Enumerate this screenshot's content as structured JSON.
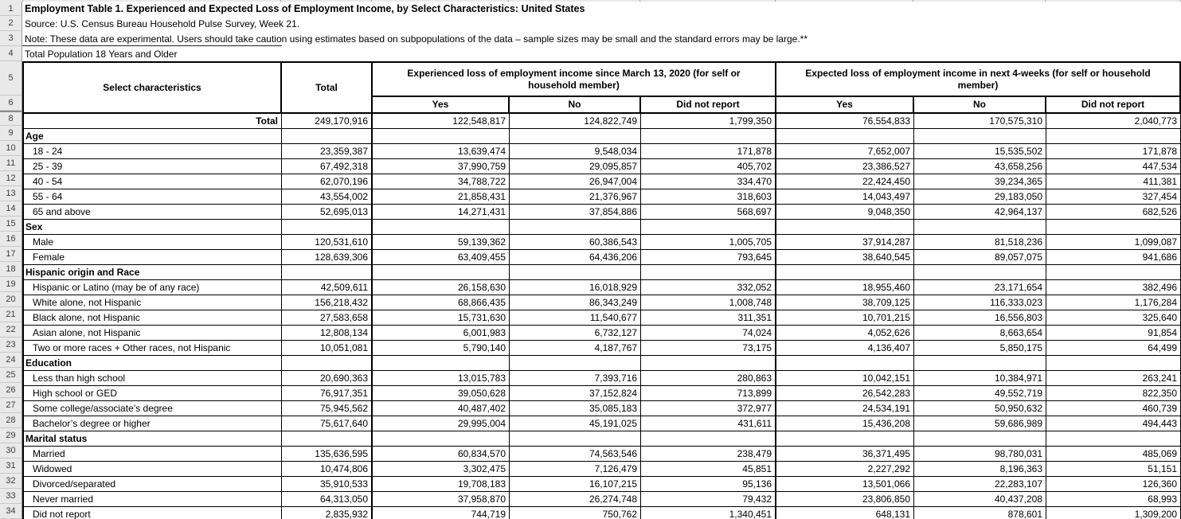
{
  "meta": {
    "title": "Employment Table 1. Experienced and Expected Loss of Employment Income, by Select Characteristics: United States",
    "source": "Source: U.S. Census Bureau Household Pulse Survey, Week 21.",
    "note": "Note: These data are experimental. Users should take caution using estimates based on subpopulations of the data – sample sizes may be small and the standard errors may be large.**",
    "population": "Total Population 18 Years and Older"
  },
  "gutter_meta_rows": [
    "1",
    "2",
    "3",
    "4",
    "5",
    "6"
  ],
  "table": {
    "headers": {
      "select": "Select characteristics",
      "total": "Total",
      "experienced": "Experienced loss of employment income since March 13, 2020 (for self or household member)",
      "expected": "Expected loss of employment income in next 4-weeks (for self or household member)",
      "subs": [
        "Yes",
        "No",
        "Did not report",
        "Yes",
        "No",
        "Did not report"
      ]
    },
    "rows": [
      {
        "n": "8",
        "type": "total",
        "label": "Total",
        "values": [
          "249,170,916",
          "122,548,817",
          "124,822,749",
          "1,799,350",
          "76,554,833",
          "170,575,310",
          "2,040,773"
        ]
      },
      {
        "n": "9",
        "type": "section",
        "label": "Age",
        "values": [
          "",
          "",
          "",
          "",
          "",
          "",
          ""
        ]
      },
      {
        "n": "10",
        "type": "data",
        "label": "18 - 24",
        "values": [
          "23,359,387",
          "13,639,474",
          "9,548,034",
          "171,878",
          "7,652,007",
          "15,535,502",
          "171,878"
        ]
      },
      {
        "n": "11",
        "type": "data",
        "label": "25 - 39",
        "values": [
          "67,492,318",
          "37,990,759",
          "29,095,857",
          "405,702",
          "23,386,527",
          "43,658,256",
          "447,534"
        ]
      },
      {
        "n": "12",
        "type": "data",
        "label": "40 - 54",
        "values": [
          "62,070,196",
          "34,788,722",
          "26,947,004",
          "334,470",
          "22,424,450",
          "39,234,365",
          "411,381"
        ]
      },
      {
        "n": "13",
        "type": "data",
        "label": "55 - 64",
        "values": [
          "43,554,002",
          "21,858,431",
          "21,376,967",
          "318,603",
          "14,043,497",
          "29,183,050",
          "327,454"
        ]
      },
      {
        "n": "14",
        "type": "data",
        "label": "65 and above",
        "values": [
          "52,695,013",
          "14,271,431",
          "37,854,886",
          "568,697",
          "9,048,350",
          "42,964,137",
          "682,526"
        ]
      },
      {
        "n": "15",
        "type": "section",
        "label": "Sex",
        "values": [
          "",
          "",
          "",
          "",
          "",
          "",
          ""
        ]
      },
      {
        "n": "16",
        "type": "data",
        "label": "Male",
        "values": [
          "120,531,610",
          "59,139,362",
          "60,386,543",
          "1,005,705",
          "37,914,287",
          "81,518,236",
          "1,099,087"
        ]
      },
      {
        "n": "17",
        "type": "data",
        "label": "Female",
        "values": [
          "128,639,306",
          "63,409,455",
          "64,436,206",
          "793,645",
          "38,640,545",
          "89,057,075",
          "941,686"
        ]
      },
      {
        "n": "18",
        "type": "section",
        "label": "Hispanic origin and Race",
        "values": [
          "",
          "",
          "",
          "",
          "",
          "",
          ""
        ]
      },
      {
        "n": "19",
        "type": "data",
        "label": "Hispanic or Latino (may be of any race)",
        "values": [
          "42,509,611",
          "26,158,630",
          "16,018,929",
          "332,052",
          "18,955,460",
          "23,171,654",
          "382,496"
        ]
      },
      {
        "n": "20",
        "type": "data",
        "label": "White alone, not Hispanic",
        "values": [
          "156,218,432",
          "68,866,435",
          "86,343,249",
          "1,008,748",
          "38,709,125",
          "116,333,023",
          "1,176,284"
        ]
      },
      {
        "n": "21",
        "type": "data",
        "label": "Black alone, not Hispanic",
        "values": [
          "27,583,658",
          "15,731,630",
          "11,540,677",
          "311,351",
          "10,701,215",
          "16,556,803",
          "325,640"
        ]
      },
      {
        "n": "22",
        "type": "data",
        "label": "Asian alone, not Hispanic",
        "values": [
          "12,808,134",
          "6,001,983",
          "6,732,127",
          "74,024",
          "4,052,626",
          "8,663,654",
          "91,854"
        ]
      },
      {
        "n": "23",
        "type": "data",
        "label": "Two or more races + Other races, not Hispanic",
        "values": [
          "10,051,081",
          "5,790,140",
          "4,187,767",
          "73,175",
          "4,136,407",
          "5,850,175",
          "64,499"
        ]
      },
      {
        "n": "24",
        "type": "section",
        "label": "Education",
        "values": [
          "",
          "",
          "",
          "",
          "",
          "",
          ""
        ]
      },
      {
        "n": "25",
        "type": "data",
        "label": "Less than high school",
        "values": [
          "20,690,363",
          "13,015,783",
          "7,393,716",
          "280,863",
          "10,042,151",
          "10,384,971",
          "263,241"
        ]
      },
      {
        "n": "26",
        "type": "data",
        "label": "High school or GED",
        "values": [
          "76,917,351",
          "39,050,628",
          "37,152,824",
          "713,899",
          "26,542,283",
          "49,552,719",
          "822,350"
        ]
      },
      {
        "n": "27",
        "type": "data",
        "label": "Some college/associate’s degree",
        "values": [
          "75,945,562",
          "40,487,402",
          "35,085,183",
          "372,977",
          "24,534,191",
          "50,950,632",
          "460,739"
        ]
      },
      {
        "n": "28",
        "type": "data",
        "label": "Bachelor’s degree or higher",
        "values": [
          "75,617,640",
          "29,995,004",
          "45,191,025",
          "431,611",
          "15,436,208",
          "59,686,989",
          "494,443"
        ]
      },
      {
        "n": "29",
        "type": "section",
        "label": "Marital status",
        "values": [
          "",
          "",
          "",
          "",
          "",
          "",
          ""
        ]
      },
      {
        "n": "30",
        "type": "data",
        "label": "Married",
        "values": [
          "135,636,595",
          "60,834,570",
          "74,563,546",
          "238,479",
          "36,371,495",
          "98,780,031",
          "485,069"
        ]
      },
      {
        "n": "31",
        "type": "data",
        "label": "Widowed",
        "values": [
          "10,474,806",
          "3,302,475",
          "7,126,479",
          "45,851",
          "2,227,292",
          "8,196,363",
          "51,151"
        ]
      },
      {
        "n": "32",
        "type": "data",
        "label": "Divorced/separated",
        "values": [
          "35,910,533",
          "19,708,183",
          "16,107,215",
          "95,136",
          "13,501,066",
          "22,283,107",
          "126,360"
        ]
      },
      {
        "n": "33",
        "type": "data",
        "label": "Never married",
        "values": [
          "64,313,050",
          "37,958,870",
          "26,274,748",
          "79,432",
          "23,806,850",
          "40,437,208",
          "68,993"
        ]
      },
      {
        "n": "34",
        "type": "data",
        "label": "Did not report",
        "values": [
          "2,835,932",
          "744,719",
          "750,762",
          "1,340,451",
          "648,131",
          "878,601",
          "1,309,200"
        ]
      }
    ]
  }
}
